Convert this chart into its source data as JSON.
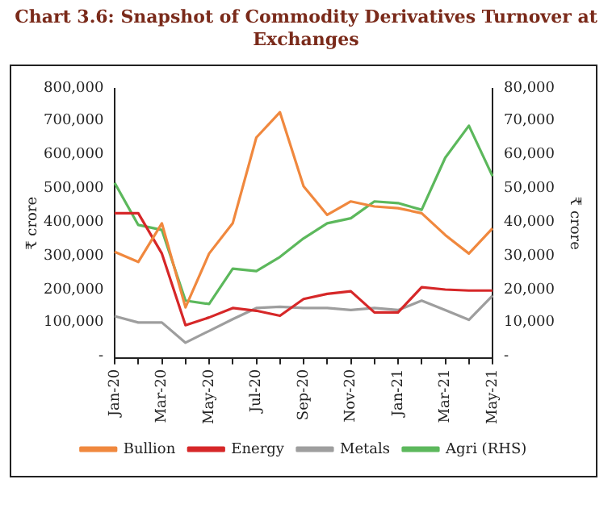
{
  "chart_data": {
    "type": "line",
    "title": "Chart 3.6: Snapshot of Commodity Derivatives Turnover at Exchanges",
    "ylabel": "₹ crore",
    "y2label": "₹ crore",
    "categories": [
      "Jan-20",
      null,
      "Mar-20",
      null,
      "May-20",
      null,
      "Jul-20",
      null,
      "Sep-20",
      null,
      "Nov-20",
      null,
      "Jan-21",
      null,
      "Mar-21",
      null,
      "May-21"
    ],
    "series": [
      {
        "name": "Bullion",
        "color": "#f0883e",
        "values": [
          315000,
          285000,
          400000,
          150000,
          310000,
          400000,
          655000,
          730000,
          510000,
          425000,
          465000,
          450000,
          445000,
          430000,
          365000,
          310000,
          385000
        ]
      },
      {
        "name": "Energy",
        "color": "#d62728",
        "values": [
          430000,
          430000,
          310000,
          97000,
          120000,
          148000,
          140000,
          125000,
          175000,
          190000,
          198000,
          135000,
          135000,
          210000,
          203000,
          200000,
          200000
        ]
      },
      {
        "name": "Metals",
        "color": "#9e9e9e",
        "values": [
          124000,
          105000,
          105000,
          45000,
          80000,
          115000,
          148000,
          152000,
          148000,
          148000,
          142000,
          148000,
          142000,
          170000,
          142000,
          113000,
          185000
        ]
      },
      {
        "name": "Agri (RHS)",
        "color": "#5cb85c",
        "axis": "y2",
        "values": [
          52000,
          39500,
          38000,
          17000,
          16000,
          26500,
          25800,
          30000,
          35500,
          40000,
          41500,
          46500,
          46000,
          44000,
          59500,
          69000,
          54000
        ]
      }
    ],
    "ylim": [
      0,
      800000
    ],
    "yticks": [
      {
        "value": 0,
        "label": "-"
      },
      {
        "value": 100000,
        "label": "100,000"
      },
      {
        "value": 200000,
        "label": "200,000"
      },
      {
        "value": 300000,
        "label": "300,000"
      },
      {
        "value": 400000,
        "label": "400,000"
      },
      {
        "value": 500000,
        "label": "500,000"
      },
      {
        "value": 600000,
        "label": "600,000"
      },
      {
        "value": 700000,
        "label": "700,000"
      },
      {
        "value": 800000,
        "label": "800,000"
      }
    ],
    "y2lim": [
      0,
      80000
    ],
    "y2ticks": [
      {
        "value": 0,
        "label": "-"
      },
      {
        "value": 10000,
        "label": "10,000"
      },
      {
        "value": 20000,
        "label": "20,000"
      },
      {
        "value": 30000,
        "label": "30,000"
      },
      {
        "value": 40000,
        "label": "40,000"
      },
      {
        "value": 50000,
        "label": "50,000"
      },
      {
        "value": 60000,
        "label": "60,000"
      },
      {
        "value": 70000,
        "label": "70,000"
      },
      {
        "value": 80000,
        "label": "80,000"
      }
    ],
    "legend": "bottom",
    "grid": false,
    "marker": "none",
    "line_style": "solid"
  }
}
